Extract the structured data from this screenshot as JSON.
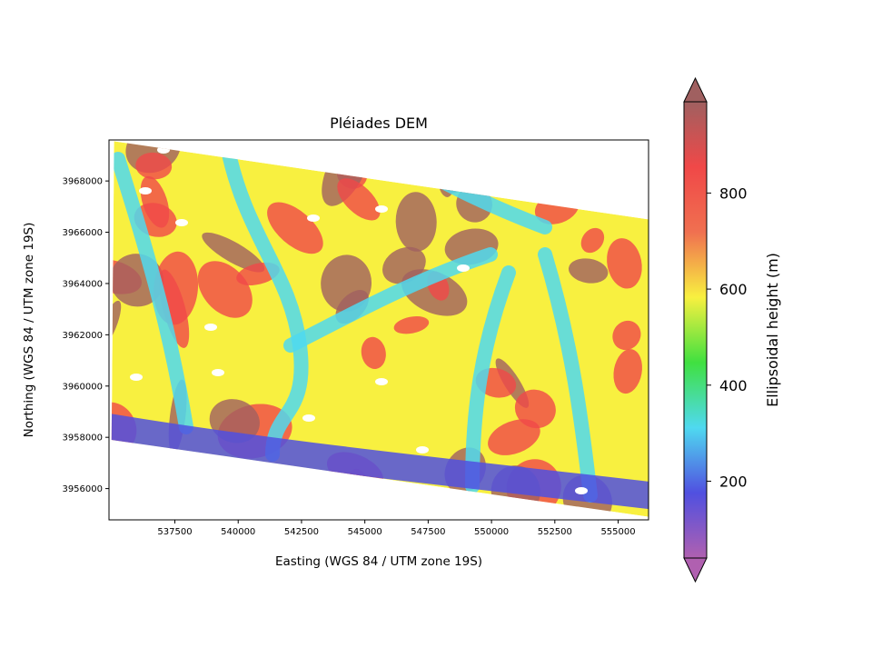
{
  "chart_data": {
    "type": "heatmap",
    "title": "Pléiades DEM",
    "xlabel": "Easting (WGS 84 / UTM zone 19S)",
    "ylabel": "Northing (WGS 84 / UTM zone 19S)",
    "xlim": [
      534900,
      556200
    ],
    "ylim": [
      3954780,
      3969600
    ],
    "xticks": [
      {
        "value": 537500,
        "label": "537500"
      },
      {
        "value": 540000,
        "label": "540000"
      },
      {
        "value": 542500,
        "label": "542500"
      },
      {
        "value": 545000,
        "label": "545000"
      },
      {
        "value": 547500,
        "label": "547500"
      },
      {
        "value": 550000,
        "label": "550000"
      },
      {
        "value": 552500,
        "label": "552500"
      },
      {
        "value": 555000,
        "label": "555000"
      }
    ],
    "yticks": [
      {
        "value": 3956000,
        "label": "3956000"
      },
      {
        "value": 3958000,
        "label": "3958000"
      },
      {
        "value": 3960000,
        "label": "3960000"
      },
      {
        "value": 3962000,
        "label": "3962000"
      },
      {
        "value": 3964000,
        "label": "3964000"
      },
      {
        "value": 3966000,
        "label": "3966000"
      },
      {
        "value": 3968000,
        "label": "3968000"
      }
    ],
    "footprint": [
      {
        "x": 535100,
        "y": 3969550
      },
      {
        "x": 556200,
        "y": 3966500
      },
      {
        "x": 556200,
        "y": 3954900
      },
      {
        "x": 535000,
        "y": 3957900
      }
    ],
    "colorbar": {
      "label": "Ellipsoidal height (m)",
      "range": [
        40,
        990
      ],
      "extend": "both",
      "colormap": "rainbow with shaded relief",
      "ticks": [
        {
          "value": 200,
          "label": "200"
        },
        {
          "value": 400,
          "label": "400"
        },
        {
          "value": 600,
          "label": "600"
        },
        {
          "value": 800,
          "label": "800"
        }
      ],
      "colors": [
        "#b060b0",
        "#5050e0",
        "#4fd9f0",
        "#40e040",
        "#f8f040",
        "#f07050",
        "#f04848",
        "#a06060"
      ]
    },
    "grid": false,
    "legend": "none"
  }
}
